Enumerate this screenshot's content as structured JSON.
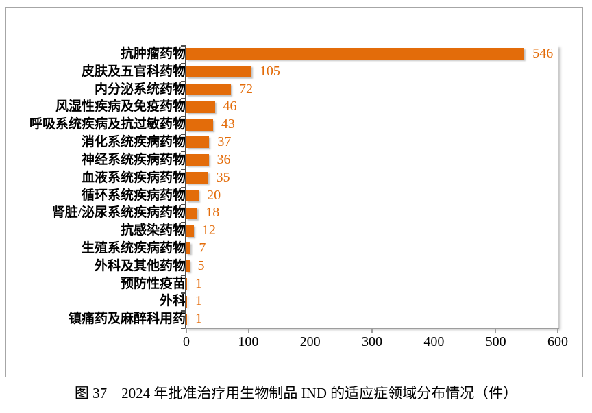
{
  "figure": {
    "caption": "图 37　2024 年批准治疗用生物制品 IND 的适应症领域分布情况（件）"
  },
  "chart_data": {
    "type": "bar",
    "orientation": "horizontal",
    "title": "",
    "xlabel": "",
    "ylabel": "",
    "categories": [
      "抗肿瘤药物",
      "皮肤及五官科药物",
      "内分泌系统药物",
      "风湿性疾病及免疫药物",
      "呼吸系统疾病及抗过敏药物",
      "消化系统疾病药物",
      "神经系统疾病药物",
      "血液系统疾病药物",
      "循环系统疾病药物",
      "肾脏/泌尿系统疾病药物",
      "抗感染药物",
      "生殖系统疾病药物",
      "外科及其他药物",
      "预防性疫苗",
      "外科",
      "镇痛药及麻醉科用药"
    ],
    "values": [
      546,
      105,
      72,
      46,
      43,
      37,
      36,
      35,
      20,
      18,
      12,
      7,
      5,
      1,
      1,
      1
    ],
    "xlim": [
      0,
      600
    ],
    "x_ticks": [
      0,
      100,
      200,
      300,
      400,
      500,
      600
    ],
    "grid": "off",
    "legend": "none",
    "bar_color": "#E36C0A",
    "value_label_color": "#E36C0A",
    "data_labels": "outside-end"
  }
}
